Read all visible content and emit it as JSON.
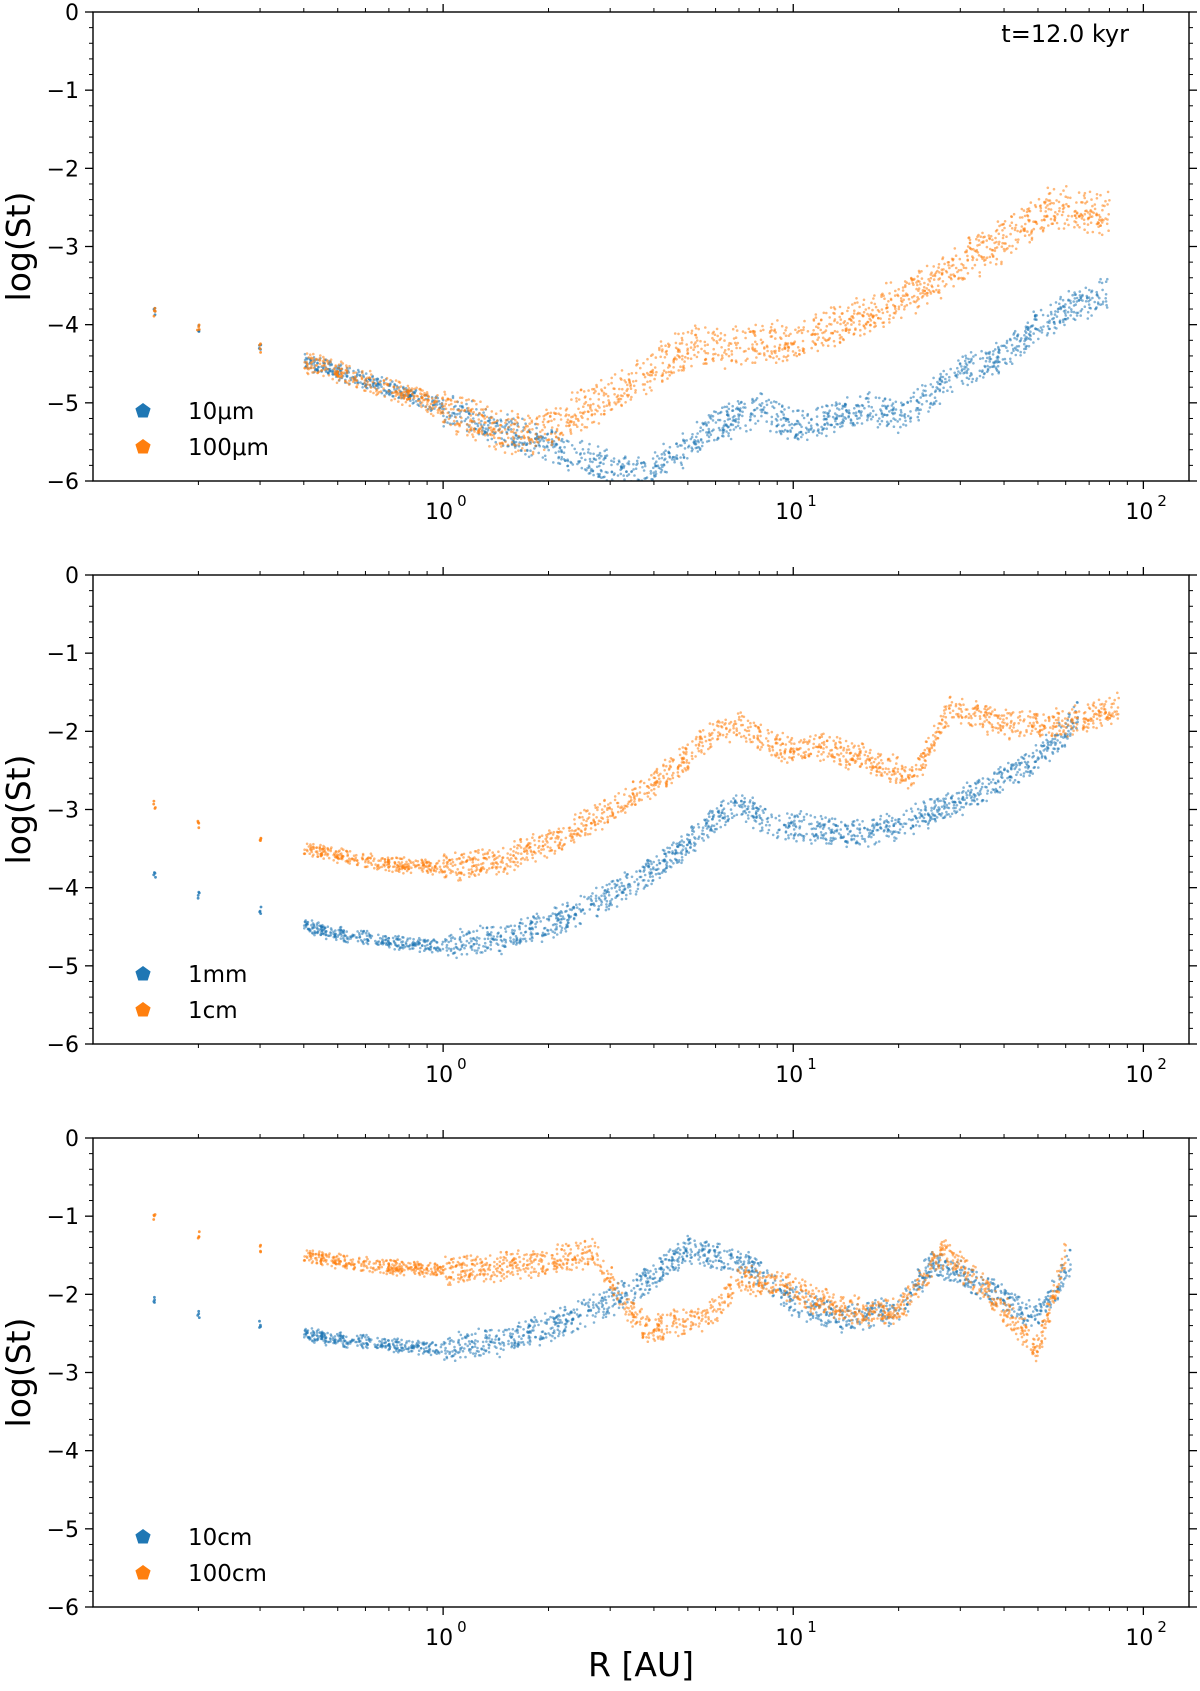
{
  "figure": {
    "xlabel": "R [AU]",
    "colors": {
      "series_a": "#1f77b4",
      "series_b": "#ff7f0e"
    }
  },
  "chart_data": [
    {
      "type": "scatter",
      "panel": "top",
      "ylabel": "log(St)",
      "annotation": "t=12.0 kyr",
      "xscale": "log",
      "xlim": [
        0.1,
        135
      ],
      "ylim": [
        -6,
        0
      ],
      "xticks": [
        "10",
        "10",
        "10"
      ],
      "xtick_exponents": [
        "0",
        "1",
        "2"
      ],
      "xtick_values": [
        1,
        10,
        100
      ],
      "yticks": [
        "0",
        "−1",
        "−2",
        "−3",
        "−4",
        "−5",
        "−6"
      ],
      "ytick_values": [
        0,
        -1,
        -2,
        -3,
        -4,
        -5,
        -6
      ],
      "legend_position": "lower-left",
      "series": [
        {
          "name": "10μm",
          "color": "#1f77b4",
          "points": [
            [
              0.15,
              -3.85
            ],
            [
              0.2,
              -4.05
            ],
            [
              0.3,
              -4.3
            ],
            [
              0.5,
              -4.6
            ],
            [
              0.8,
              -4.9
            ],
            [
              1.2,
              -5.2
            ],
            [
              1.7,
              -5.45
            ],
            [
              2.5,
              -5.7
            ],
            [
              3.5,
              -5.95
            ],
            [
              4.5,
              -5.7
            ],
            [
              6,
              -5.3
            ],
            [
              8,
              -5.1
            ],
            [
              10,
              -5.3
            ],
            [
              13,
              -5.2
            ],
            [
              16,
              -5.05
            ],
            [
              20,
              -5.2
            ],
            [
              25,
              -4.9
            ],
            [
              30,
              -4.6
            ],
            [
              40,
              -4.4
            ],
            [
              50,
              -4.0
            ],
            [
              60,
              -3.8
            ],
            [
              80,
              -3.6
            ]
          ],
          "band": 0.35
        },
        {
          "name": "100μm",
          "color": "#ff7f0e",
          "points": [
            [
              0.15,
              -3.85
            ],
            [
              0.2,
              -4.05
            ],
            [
              0.3,
              -4.3
            ],
            [
              0.5,
              -4.6
            ],
            [
              0.8,
              -4.9
            ],
            [
              1.2,
              -5.2
            ],
            [
              1.7,
              -5.45
            ],
            [
              2.5,
              -5.1
            ],
            [
              3.5,
              -4.7
            ],
            [
              5,
              -4.3
            ],
            [
              7,
              -4.25
            ],
            [
              10,
              -4.2
            ],
            [
              14,
              -4.0
            ],
            [
              20,
              -3.7
            ],
            [
              28,
              -3.3
            ],
            [
              40,
              -2.9
            ],
            [
              55,
              -2.5
            ],
            [
              80,
              -2.6
            ]
          ],
          "band": 0.45
        }
      ]
    },
    {
      "type": "scatter",
      "panel": "middle",
      "ylabel": "log(St)",
      "xscale": "log",
      "xlim": [
        0.1,
        135
      ],
      "ylim": [
        -6,
        0
      ],
      "xticks": [
        "10",
        "10",
        "10"
      ],
      "xtick_exponents": [
        "0",
        "1",
        "2"
      ],
      "xtick_values": [
        1,
        10,
        100
      ],
      "yticks": [
        "0",
        "−1",
        "−2",
        "−3",
        "−4",
        "−5",
        "−6"
      ],
      "ytick_values": [
        0,
        -1,
        -2,
        -3,
        -4,
        -5,
        -6
      ],
      "legend_position": "lower-left",
      "series": [
        {
          "name": "1mm",
          "color": "#1f77b4",
          "points": [
            [
              0.15,
              -3.85
            ],
            [
              0.2,
              -4.1
            ],
            [
              0.3,
              -4.3
            ],
            [
              0.45,
              -4.55
            ],
            [
              0.7,
              -4.7
            ],
            [
              1.0,
              -4.75
            ],
            [
              1.5,
              -4.65
            ],
            [
              2.2,
              -4.4
            ],
            [
              3,
              -4.1
            ],
            [
              4.5,
              -3.6
            ],
            [
              6,
              -3.1
            ],
            [
              7,
              -2.95
            ],
            [
              9,
              -3.2
            ],
            [
              12,
              -3.25
            ],
            [
              16,
              -3.3
            ],
            [
              20,
              -3.2
            ],
            [
              30,
              -2.9
            ],
            [
              40,
              -2.6
            ],
            [
              55,
              -2.2
            ],
            [
              65,
              -1.8
            ]
          ],
          "band": 0.3
        },
        {
          "name": "1cm",
          "color": "#ff7f0e",
          "points": [
            [
              0.15,
              -2.95
            ],
            [
              0.2,
              -3.2
            ],
            [
              0.3,
              -3.4
            ],
            [
              0.45,
              -3.55
            ],
            [
              0.7,
              -3.7
            ],
            [
              1.0,
              -3.75
            ],
            [
              1.5,
              -3.65
            ],
            [
              2.2,
              -3.35
            ],
            [
              3,
              -3.0
            ],
            [
              4.5,
              -2.5
            ],
            [
              6,
              -2.0
            ],
            [
              7,
              -1.9
            ],
            [
              9,
              -2.2
            ],
            [
              12,
              -2.2
            ],
            [
              16,
              -2.35
            ],
            [
              22,
              -2.6
            ],
            [
              28,
              -1.7
            ],
            [
              40,
              -1.9
            ],
            [
              60,
              -1.9
            ],
            [
              85,
              -1.7
            ]
          ],
          "band": 0.3
        }
      ]
    },
    {
      "type": "scatter",
      "panel": "bottom",
      "ylabel": "log(St)",
      "xscale": "log",
      "xlim": [
        0.1,
        135
      ],
      "ylim": [
        -6,
        0
      ],
      "xticks": [
        "10",
        "10",
        "10"
      ],
      "xtick_exponents": [
        "0",
        "1",
        "2"
      ],
      "xtick_values": [
        1,
        10,
        100
      ],
      "yticks": [
        "0",
        "−1",
        "−2",
        "−3",
        "−4",
        "−5",
        "−6"
      ],
      "ytick_values": [
        0,
        -1,
        -2,
        -3,
        -4,
        -5,
        -6
      ],
      "legend_position": "lower-left",
      "series": [
        {
          "name": "10cm",
          "color": "#1f77b4",
          "points": [
            [
              0.15,
              -2.05
            ],
            [
              0.2,
              -2.25
            ],
            [
              0.3,
              -2.4
            ],
            [
              0.45,
              -2.55
            ],
            [
              0.7,
              -2.65
            ],
            [
              1.0,
              -2.7
            ],
            [
              1.5,
              -2.6
            ],
            [
              2.2,
              -2.35
            ],
            [
              3,
              -2.1
            ],
            [
              4,
              -1.75
            ],
            [
              5,
              -1.4
            ],
            [
              6,
              -1.5
            ],
            [
              8,
              -1.7
            ],
            [
              10,
              -2.1
            ],
            [
              14,
              -2.3
            ],
            [
              20,
              -2.2
            ],
            [
              25,
              -1.6
            ],
            [
              35,
              -1.9
            ],
            [
              50,
              -2.3
            ],
            [
              62,
              -1.6
            ]
          ],
          "band": 0.3
        },
        {
          "name": "100cm",
          "color": "#ff7f0e",
          "points": [
            [
              0.15,
              -1.0
            ],
            [
              0.2,
              -1.25
            ],
            [
              0.3,
              -1.4
            ],
            [
              0.45,
              -1.55
            ],
            [
              0.7,
              -1.65
            ],
            [
              1.0,
              -1.7
            ],
            [
              1.5,
              -1.65
            ],
            [
              2.2,
              -1.55
            ],
            [
              2.7,
              -1.45
            ],
            [
              3.3,
              -2.1
            ],
            [
              3.8,
              -2.45
            ],
            [
              5,
              -2.35
            ],
            [
              6,
              -2.2
            ],
            [
              7,
              -1.8
            ],
            [
              9,
              -1.85
            ],
            [
              12,
              -2.1
            ],
            [
              16,
              -2.25
            ],
            [
              20,
              -2.2
            ],
            [
              27,
              -1.45
            ],
            [
              35,
              -1.9
            ],
            [
              50,
              -2.7
            ],
            [
              60,
              -1.5
            ]
          ],
          "band": 0.3
        }
      ]
    }
  ]
}
